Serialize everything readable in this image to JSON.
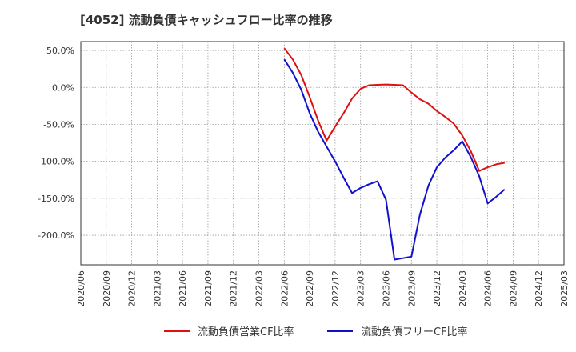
{
  "chart_data": {
    "type": "line",
    "title": "[4052]  流動負債キャッシュフロー比率の推移",
    "xlabel": "",
    "ylabel": "",
    "ylim": [
      -240,
      62
    ],
    "y_ticks": [
      50,
      0,
      -50,
      -100,
      -150,
      -200
    ],
    "y_tick_labels": [
      "50.0%",
      "0.0%",
      "-50.0%",
      "-100.0%",
      "-150.0%",
      "-200.0%"
    ],
    "x_tick_labels": [
      "2020/06",
      "2020/09",
      "2020/12",
      "2021/03",
      "2021/06",
      "2021/09",
      "2021/12",
      "2022/03",
      "2022/06",
      "2022/09",
      "2022/12",
      "2023/03",
      "2023/06",
      "2023/09",
      "2023/12",
      "2024/03",
      "2024/06",
      "2024/09",
      "2024/12",
      "2025/03"
    ],
    "grid": true,
    "legend_position": "bottom",
    "series": [
      {
        "name": "流動負債営業CF比率",
        "color": "#dd1111",
        "points": [
          [
            24,
            53
          ],
          [
            25,
            38
          ],
          [
            26,
            17
          ],
          [
            27,
            -13
          ],
          [
            28,
            -45
          ],
          [
            29,
            -72
          ],
          [
            30,
            -53
          ],
          [
            31,
            -35
          ],
          [
            32,
            -15
          ],
          [
            33,
            -2
          ],
          [
            34,
            3
          ],
          [
            35,
            3.5
          ],
          [
            36,
            4
          ],
          [
            37,
            3.5
          ],
          [
            38,
            3
          ],
          [
            39,
            -7
          ],
          [
            40,
            -16
          ],
          [
            41,
            -22
          ],
          [
            42,
            -32
          ],
          [
            43,
            -40
          ],
          [
            44,
            -49
          ],
          [
            45,
            -65
          ],
          [
            46,
            -86
          ],
          [
            47,
            -113
          ],
          [
            48,
            -108
          ],
          [
            49,
            -104
          ],
          [
            50,
            -102
          ]
        ]
      },
      {
        "name": "流動負債フリーCF比率",
        "color": "#1111cc",
        "points": [
          [
            24,
            38
          ],
          [
            25,
            20
          ],
          [
            26,
            -3
          ],
          [
            27,
            -35
          ],
          [
            28,
            -60
          ],
          [
            29,
            -80
          ],
          [
            30,
            -100
          ],
          [
            31,
            -122
          ],
          [
            32,
            -143
          ],
          [
            33,
            -136
          ],
          [
            34,
            -131
          ],
          [
            35,
            -127
          ],
          [
            36,
            -152
          ],
          [
            37,
            -233
          ],
          [
            38,
            -231
          ],
          [
            39,
            -229
          ],
          [
            40,
            -172
          ],
          [
            41,
            -133
          ],
          [
            42,
            -108
          ],
          [
            43,
            -95
          ],
          [
            44,
            -85
          ],
          [
            45,
            -73
          ],
          [
            46,
            -94
          ],
          [
            47,
            -120
          ],
          [
            48,
            -157
          ],
          [
            49,
            -148
          ],
          [
            50,
            -138
          ]
        ]
      }
    ]
  }
}
